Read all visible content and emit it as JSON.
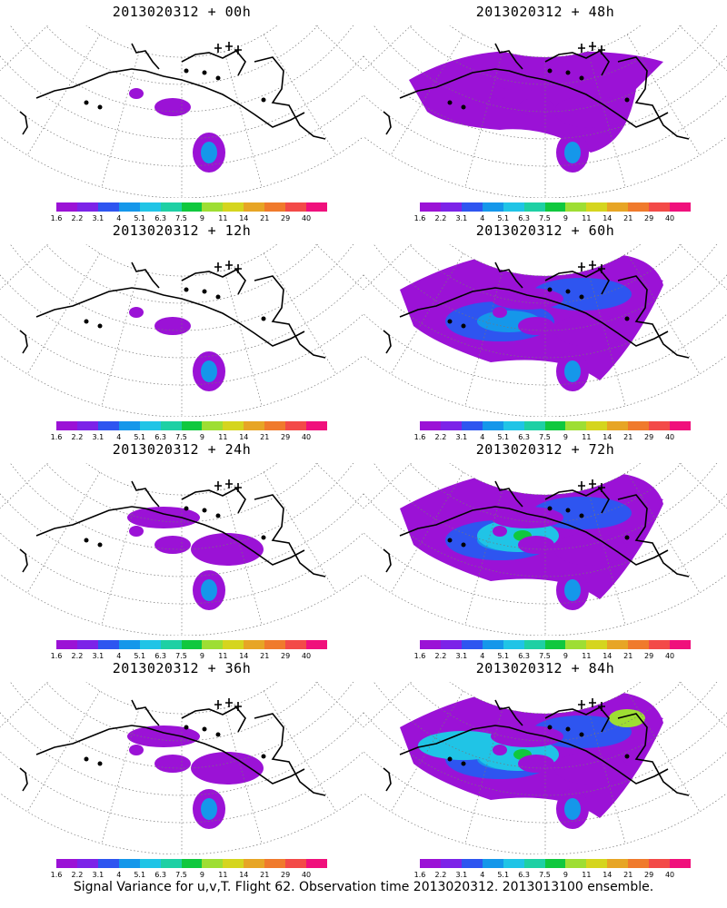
{
  "footer": "Signal Variance for u,v,T. Flight 62. Observation time 2013020312. 2013013100 ensemble.",
  "colorbar": {
    "colors": [
      "#9b12d6",
      "#7c23e8",
      "#2e55f0",
      "#1597ea",
      "#20c4e6",
      "#1ed0a4",
      "#10c83e",
      "#9ede33",
      "#d5d51e",
      "#e7a525",
      "#f07a2c",
      "#f34a48",
      "#f0107c"
    ],
    "labels": [
      "1.6",
      "2.2",
      "3.1",
      "4",
      "5.1",
      "6.3",
      "7.5",
      "9",
      "11",
      "14",
      "21",
      "29",
      "40"
    ]
  },
  "panels": [
    {
      "title": "2013020312 + 00h",
      "intensity": 0
    },
    {
      "title": "2013020312 + 48h",
      "intensity": 2
    },
    {
      "title": "2013020312 + 12h",
      "intensity": 0
    },
    {
      "title": "2013020312 + 60h",
      "intensity": 3
    },
    {
      "title": "2013020312 + 24h",
      "intensity": 1
    },
    {
      "title": "2013020312 + 72h",
      "intensity": 4
    },
    {
      "title": "2013020312 + 36h",
      "intensity": 1
    },
    {
      "title": "2013020312 + 84h",
      "intensity": 5
    }
  ]
}
